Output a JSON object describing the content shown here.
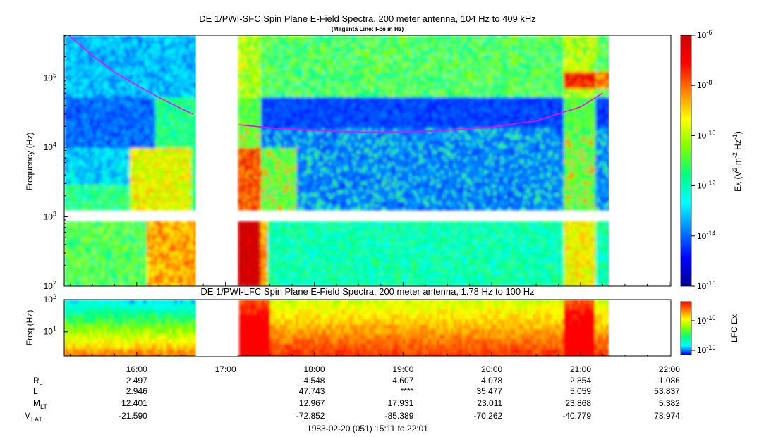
{
  "chart_data": [
    {
      "type": "heatmap",
      "title": "DE 1/PWI-SFC  Spin Plane E-Field Spectra, 200 meter antenna, 104 Hz to 409 kHz",
      "subtitle": "(Magenta Line: Fce in Hz)",
      "ylabel": "Frequency (Hz)",
      "ylim": [
        100,
        409000
      ],
      "yscale": "log",
      "yticks": [
        {
          "value": 100,
          "base": "10",
          "exp": "2"
        },
        {
          "value": 1000,
          "base": "10",
          "exp": "3"
        },
        {
          "value": 10000,
          "base": "10",
          "exp": "4"
        },
        {
          "value": 100000,
          "base": "10",
          "exp": "5"
        }
      ],
      "colorbar": {
        "label_parts": [
          "Ex (V",
          "2",
          " m",
          "-2",
          " Hz",
          "-1",
          ")"
        ],
        "scale": "log",
        "range": [
          1e-16,
          1e-06
        ],
        "ticks": [
          {
            "value": 1e-06,
            "base": "10",
            "exp": "-6"
          },
          {
            "value": 1e-08,
            "base": "10",
            "exp": "-8"
          },
          {
            "value": 1e-10,
            "base": "10",
            "exp": "-10"
          },
          {
            "value": 1e-12,
            "base": "10",
            "exp": "-12"
          },
          {
            "value": 1e-14,
            "base": "10",
            "exp": "-14"
          },
          {
            "value": 1e-16,
            "base": "10",
            "exp": "-16"
          }
        ],
        "colors": [
          "#00008b",
          "#0000ff",
          "#0080ff",
          "#00ffff",
          "#00ff80",
          "#80ff00",
          "#ffff00",
          "#ff8000",
          "#ff0000",
          "#cc0000"
        ]
      },
      "data_gap": {
        "start": "16:40",
        "end": "17:08"
      },
      "fce_line": {
        "color": "#ff00ff",
        "segment1": [
          [
            "15:14",
            409000
          ],
          [
            "15:30",
            210000
          ],
          [
            "15:45",
            120000
          ],
          [
            "16:00",
            78000
          ],
          [
            "16:15",
            52000
          ],
          [
            "16:30",
            36000
          ],
          [
            "16:38",
            30000
          ]
        ],
        "segment2": [
          [
            "17:09",
            21000
          ],
          [
            "17:30",
            19000
          ],
          [
            "18:00",
            17500
          ],
          [
            "18:30",
            16500
          ],
          [
            "19:00",
            16500
          ],
          [
            "19:30",
            17500
          ],
          [
            "20:00",
            19500
          ],
          [
            "20:30",
            24000
          ],
          [
            "21:00",
            38000
          ],
          [
            "21:15",
            60000
          ]
        ]
      }
    },
    {
      "type": "heatmap",
      "title": "DE 1/PWI-LFC  Spin Plane E-Field Spectra, 200 meter antenna, 1.78 Hz to 100 Hz",
      "ylabel": "Freq (Hz)",
      "ylim": [
        1.78,
        100
      ],
      "yscale": "log",
      "yticks": [
        {
          "value": 10,
          "base": "10",
          "exp": "1"
        },
        {
          "value": 100,
          "base": "10",
          "exp": "2"
        }
      ],
      "colorbar": {
        "label": "LFC Ex",
        "scale": "log",
        "ticks": [
          {
            "value": 1e-10,
            "base": "10",
            "exp": "-10"
          },
          {
            "value": 1e-15,
            "base": "10",
            "exp": "-15"
          }
        ],
        "colors": [
          "#0000ff",
          "#00ffff",
          "#00ff80",
          "#80ff00",
          "#ffff00",
          "#ff8000",
          "#ff0000"
        ]
      },
      "data_gap": {
        "start": "16:40",
        "end": "17:08"
      }
    }
  ],
  "x_axis": {
    "ticks": [
      "16:00",
      "17:00",
      "18:00",
      "19:00",
      "20:00",
      "21:00",
      "22:00"
    ],
    "tick_hours": [
      16,
      17,
      18,
      19,
      20,
      21,
      22
    ],
    "range_hours": [
      15.183,
      22.017
    ],
    "data_end": "21:19"
  },
  "ephemeris": {
    "rows": [
      {
        "label": "R",
        "sub": "e",
        "values": [
          "2.497",
          "",
          "4.548",
          "4.607",
          "4.078",
          "2.854",
          "1.086"
        ]
      },
      {
        "label": "L",
        "sub": "",
        "values": [
          "2.946",
          "",
          "47.743",
          "****",
          "35.477",
          "5.059",
          "53.837"
        ]
      },
      {
        "label": "M",
        "sub": "LT",
        "values": [
          "12.401",
          "",
          "12.967",
          "17.931",
          "23.011",
          "23.868",
          "5.382"
        ]
      },
      {
        "label": "M",
        "sub": "LAT",
        "values": [
          "-21.590",
          "",
          "-72.852",
          "-85.389",
          "-70.262",
          "-40.779",
          "78.974"
        ]
      }
    ]
  },
  "footer": "1983-02-20 (051) 15:11 to 22:01"
}
